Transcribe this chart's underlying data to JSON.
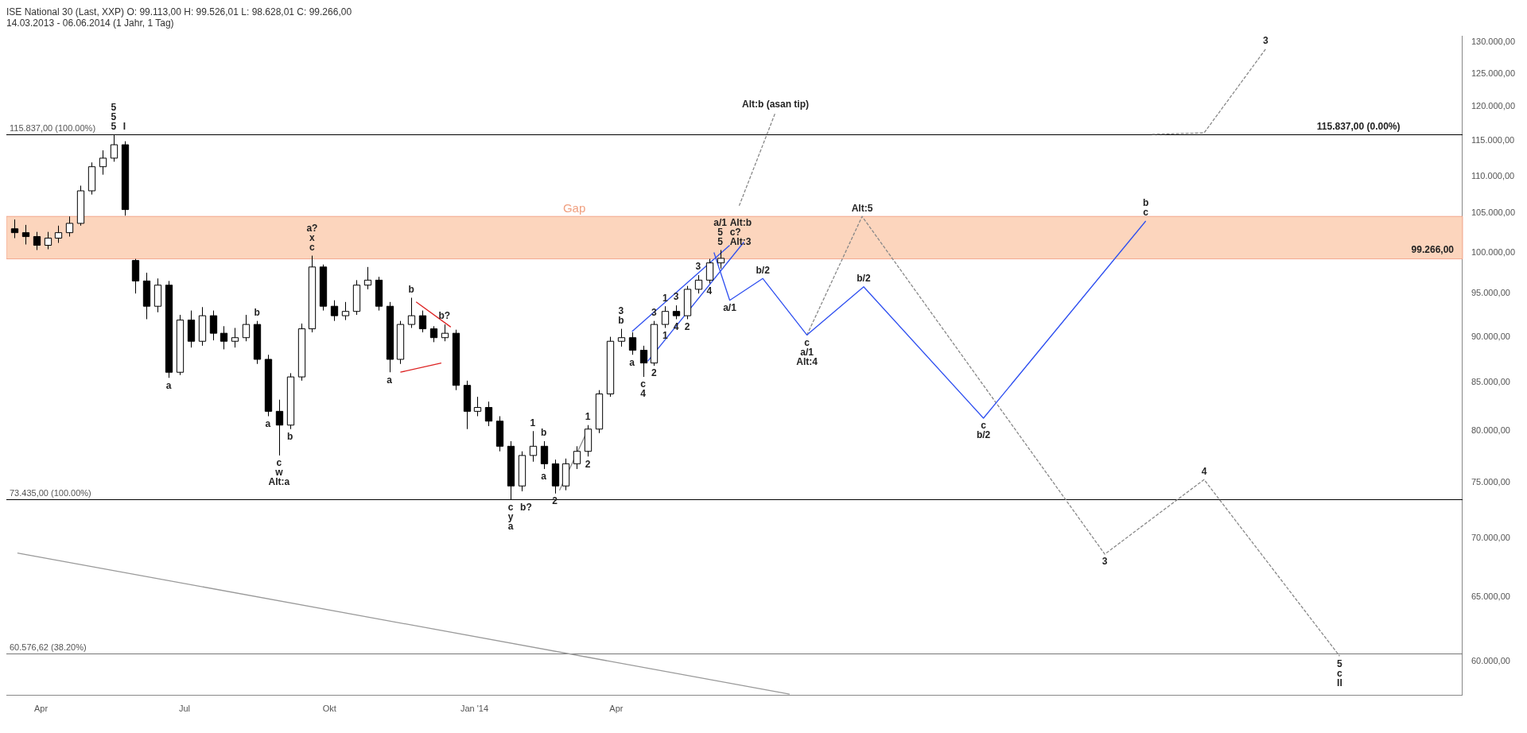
{
  "chart_data": {
    "type": "candlestick",
    "title": "ISE National 30 (Last, XXP)   O: 99.113,00   H: 99.526,01   L: 98.628,01   C: 99.266,00",
    "subtitle": "14.03.2013 - 06.06.2014 (1 Jahr, 1 Tag)",
    "colors": [
      "#000000",
      "#000000",
      "#000000",
      "#ffffff",
      "#ffffff",
      "#ffffff",
      "#ffffff",
      "#ffffff",
      "#ffffff",
      "#ffffff",
      "#000000",
      "#000000",
      "#000000",
      "#ffffff",
      "#000000",
      "#ffffff",
      "#000000",
      "#ffffff",
      "#000000",
      "#000000",
      "#ffffff",
      "#ffffff",
      "#000000",
      "#000000",
      "#000000",
      "#ffffff",
      "#ffffff",
      "#ffffff",
      "#000000",
      "#000000",
      "#ffffff",
      "#ffffff",
      "#ffffff",
      "#000000",
      "#000000",
      "#ffffff",
      "#ffffff",
      "#000000",
      "#000000",
      "#ffffff",
      "#000000",
      "#000000",
      "#ffffff",
      "#000000",
      "#000000",
      "#000000",
      "#ffffff",
      "#ffffff",
      "#000000",
      "#000000",
      "#ffffff",
      "#ffffff",
      "#ffffff",
      "#ffffff",
      "#ffffff",
      "#ffffff",
      "#000000",
      "#000000",
      "#ffffff",
      "#ffffff",
      "#000000",
      "#ffffff",
      "#ffffff",
      "#ffffff",
      "#ffffff"
    ],
    "marker": "none",
    "log": true,
    "x": [
      "2013-03-15",
      "2013-03-22",
      "2013-03-29",
      "2013-04-05",
      "2013-04-12",
      "2013-04-19",
      "2013-04-26",
      "2013-05-03",
      "2013-05-10",
      "2013-05-17",
      "2013-05-24",
      "2013-05-31",
      "2013-06-07",
      "2013-06-14",
      "2013-06-21",
      "2013-06-28",
      "2013-07-05",
      "2013-07-12",
      "2013-07-19",
      "2013-07-26",
      "2013-08-02",
      "2013-08-09",
      "2013-08-16",
      "2013-08-23",
      "2013-08-30",
      "2013-09-06",
      "2013-09-13",
      "2013-09-20",
      "2013-09-27",
      "2013-10-04",
      "2013-10-11",
      "2013-10-18",
      "2013-10-25",
      "2013-11-01",
      "2013-11-08",
      "2013-11-15",
      "2013-11-22",
      "2013-11-29",
      "2013-12-06",
      "2013-12-13",
      "2013-12-20",
      "2013-12-27",
      "2014-01-03",
      "2014-01-10",
      "2014-01-17",
      "2014-01-24",
      "2014-01-31",
      "2014-02-07",
      "2014-02-14",
      "2014-02-21",
      "2014-02-28",
      "2014-03-07",
      "2014-03-14",
      "2014-03-21",
      "2014-03-28",
      "2014-04-04",
      "2014-04-11",
      "2014-04-18",
      "2014-04-25",
      "2014-05-02",
      "2014-05-09",
      "2014-05-16",
      "2014-05-23",
      "2014-05-30",
      "2014-06-06"
    ],
    "ohlc": [
      [
        103000,
        104200,
        101800,
        102500
      ],
      [
        102500,
        103500,
        101000,
        102000
      ],
      [
        102000,
        102600,
        100300,
        100900
      ],
      [
        100900,
        102600,
        100400,
        101800
      ],
      [
        101800,
        103400,
        101200,
        102500
      ],
      [
        102500,
        104600,
        102000,
        103700
      ],
      [
        103700,
        108700,
        103400,
        108000
      ],
      [
        108000,
        111900,
        107500,
        111300
      ],
      [
        111300,
        113600,
        110200,
        112500
      ],
      [
        112500,
        115837,
        112000,
        114400
      ],
      [
        114400,
        114900,
        104700,
        105500
      ],
      [
        99000,
        99200,
        95000,
        96500
      ],
      [
        96500,
        97500,
        92000,
        93500
      ],
      [
        93500,
        96800,
        92800,
        96000
      ],
      [
        96000,
        96500,
        85500,
        86100
      ],
      [
        86100,
        92500,
        85800,
        91900
      ],
      [
        91900,
        93000,
        88800,
        89500
      ],
      [
        89500,
        93400,
        89000,
        92400
      ],
      [
        92400,
        93000,
        89600,
        90400
      ],
      [
        90400,
        91200,
        88600,
        89500
      ],
      [
        89500,
        91000,
        88800,
        89900
      ],
      [
        89900,
        92500,
        89500,
        91400
      ],
      [
        91400,
        91800,
        87000,
        87500
      ],
      [
        87500,
        88000,
        81500,
        82000
      ],
      [
        82000,
        83200,
        77600,
        80600
      ],
      [
        80600,
        86000,
        80200,
        85600
      ],
      [
        85600,
        91500,
        85200,
        90900
      ],
      [
        90900,
        99600,
        90500,
        98200
      ],
      [
        98200,
        98500,
        93000,
        93500
      ],
      [
        93500,
        94200,
        91800,
        92400
      ],
      [
        92400,
        94000,
        91900,
        92900
      ],
      [
        92900,
        96600,
        92500,
        96000
      ],
      [
        96000,
        98200,
        95500,
        96600
      ],
      [
        96600,
        97000,
        93000,
        93500
      ],
      [
        93500,
        94000,
        86100,
        87500
      ],
      [
        87500,
        91800,
        87000,
        91400
      ],
      [
        91400,
        94500,
        91000,
        92400
      ],
      [
        92400,
        93000,
        90500,
        90900
      ],
      [
        90900,
        91200,
        89400,
        89900
      ],
      [
        89900,
        91400,
        89500,
        90400
      ],
      [
        90400,
        90800,
        84200,
        84700
      ],
      [
        84700,
        85200,
        80200,
        82000
      ],
      [
        82000,
        83500,
        81500,
        82400
      ],
      [
        82400,
        83000,
        80500,
        81000
      ],
      [
        81000,
        81500,
        78000,
        78500
      ],
      [
        78500,
        79000,
        73435,
        74700
      ],
      [
        74700,
        78000,
        74200,
        77600
      ],
      [
        77600,
        80000,
        77000,
        78500
      ],
      [
        78500,
        79000,
        76300,
        76800
      ],
      [
        76800,
        77200,
        74000,
        74700
      ],
      [
        74700,
        77300,
        74300,
        76800
      ],
      [
        76800,
        78500,
        76300,
        78000
      ],
      [
        78000,
        80600,
        77500,
        80200
      ],
      [
        80200,
        84200,
        79800,
        83800
      ],
      [
        83800,
        90000,
        83500,
        89500
      ],
      [
        89500,
        90900,
        88900,
        89900
      ],
      [
        89900,
        90500,
        88000,
        88500
      ],
      [
        88500,
        89000,
        85600,
        87100
      ],
      [
        87100,
        91800,
        86800,
        91400
      ],
      [
        91400,
        93500,
        91000,
        92900
      ],
      [
        92900,
        93600,
        92000,
        92400
      ],
      [
        92400,
        95900,
        92000,
        95500
      ],
      [
        95500,
        97200,
        95000,
        96600
      ],
      [
        96600,
        99200,
        96200,
        98700
      ],
      [
        98700,
        100300,
        98000,
        99266
      ]
    ],
    "xlim": [
      "2013-03-10",
      "2015-09-20"
    ],
    "xticks": [
      {
        "value": "2013-04-01",
        "label": "Apr"
      },
      {
        "value": "2013-07-01",
        "label": "Jul"
      },
      {
        "value": "2013-10-01",
        "label": "Okt"
      },
      {
        "value": "2014-01-01",
        "label": "Jan '14"
      },
      {
        "value": "2014-04-01",
        "label": "Apr"
      }
    ],
    "ylim": [
      57500,
      131000
    ],
    "yticks": [
      {
        "value": 60000,
        "label": "60.000,00"
      },
      {
        "value": 65000,
        "label": "65.000,00"
      },
      {
        "value": 70000,
        "label": "70.000,00"
      },
      {
        "value": 75000,
        "label": "75.000,00"
      },
      {
        "value": 80000,
        "label": "80.000,00"
      },
      {
        "value": 85000,
        "label": "85.000,00"
      },
      {
        "value": 90000,
        "label": "90.000,00"
      },
      {
        "value": 95000,
        "label": "95.000,00"
      },
      {
        "value": 100000,
        "label": "100.000,00"
      },
      {
        "value": 105000,
        "label": "105.000,00"
      },
      {
        "value": 110000,
        "label": "110.000,00"
      },
      {
        "value": 115000,
        "label": "115.000,00"
      },
      {
        "value": 120000,
        "label": "120.000,00"
      },
      {
        "value": 125000,
        "label": "125.000,00"
      },
      {
        "value": 130000,
        "label": "130.000,00"
      }
    ],
    "ref_lines": [
      {
        "axis": "y",
        "value": 115837,
        "label": "115.837,00 (100.00%)",
        "color": "#000000"
      },
      {
        "axis": "y",
        "value": 73435,
        "label": "73.435,00 (100.00%)",
        "color": "#000000"
      },
      {
        "axis": "y",
        "value": 60576.62,
        "label": "60.576,62 (38.20%)",
        "color": "#777777"
      }
    ],
    "bands": [
      {
        "axis": "y",
        "from": 99200,
        "to": 104600,
        "label": "Gap",
        "color": "#fcd5bd"
      }
    ],
    "series": [
      {
        "type": "line",
        "color": "#2e4ff0",
        "line_style": "solid",
        "x": [
          "2014-06-02",
          "2014-06-12",
          "2014-07-03",
          "2014-07-31",
          "2014-09-05",
          "2014-11-20",
          "2015-03-03"
        ],
        "values": [
          100000,
          94200,
          96800,
          90200,
          95800,
          81300,
          104000
        ]
      },
      {
        "type": "line",
        "color": "#2e4ff0",
        "line_style": "solid",
        "x": [
          "2014-04-11",
          "2014-06-12"
        ],
        "values": [
          90600,
          100900
        ]
      },
      {
        "type": "line",
        "color": "#2e4ff0",
        "line_style": "solid",
        "x": [
          "2014-04-21",
          "2014-06-21"
        ],
        "values": [
          87300,
          101300
        ]
      },
      {
        "type": "line",
        "color": "#888888",
        "line_style": "dashed",
        "x": [
          "2014-06-18",
          "2014-07-11"
        ],
        "values": [
          106000,
          119100
        ]
      },
      {
        "type": "line",
        "color": "#888888",
        "line_style": "dashed",
        "x": [
          "2014-07-31",
          "2014-09-04",
          "2015-02-05",
          "2015-04-09",
          "2015-07-04"
        ],
        "values": [
          90200,
          104600,
          68600,
          75300,
          60400
        ]
      },
      {
        "type": "line",
        "color": "#888888",
        "line_style": "dashed",
        "x": [
          "2015-03-07",
          "2015-04-09",
          "2015-05-18"
        ],
        "values": [
          115900,
          116100,
          128900
        ]
      },
      {
        "type": "line",
        "color": "#999999",
        "line_style": "solid",
        "x": [
          "2013-03-17",
          "2014-07-20"
        ],
        "values": [
          68700,
          57600
        ]
      },
      {
        "type": "line",
        "color": "#dd2222",
        "line_style": "solid",
        "x": [
          "2013-11-25",
          "2013-12-17"
        ],
        "values": [
          94000,
          91100
        ]
      },
      {
        "type": "line",
        "color": "#dd2222",
        "line_style": "solid",
        "x": [
          "2013-11-15",
          "2013-12-11"
        ],
        "values": [
          86100,
          87100
        ]
      },
      {
        "type": "line",
        "color": "#888888",
        "line_style": "solid",
        "x": [
          "2014-02-24",
          "2014-03-13"
        ],
        "values": [
          74300,
          79800
        ]
      }
    ],
    "annotations": [
      {
        "text": "5",
        "x": "2013-05-17",
        "y": 115837
      },
      {
        "text": "5",
        "x": "2013-05-17",
        "y": 115837
      },
      {
        "text": "5",
        "x": "2013-05-17",
        "y": 115837
      },
      {
        "text": "I",
        "x": "2013-05-17",
        "y": 115837
      },
      {
        "text": "c",
        "x": "2013-09-20",
        "y": 99600
      },
      {
        "text": "x",
        "x": "2013-09-20",
        "y": 99600
      },
      {
        "text": "a?",
        "x": "2013-09-20",
        "y": 99600
      },
      {
        "text": "b",
        "x": "2013-08-16",
        "y": 91800
      },
      {
        "text": "a",
        "x": "2013-06-21",
        "y": 85500
      },
      {
        "text": "a",
        "x": "2013-08-23",
        "y": 81500
      },
      {
        "text": "b",
        "x": "2013-09-06",
        "y": 80200
      },
      {
        "text": "c",
        "x": "2013-08-30",
        "y": 77600
      },
      {
        "text": "w",
        "x": "2013-08-30",
        "y": 77600
      },
      {
        "text": "Alt:a",
        "x": "2013-08-30",
        "y": 77600
      },
      {
        "text": "b",
        "x": "2013-11-22",
        "y": 94500
      },
      {
        "text": "b?",
        "x": "2013-12-13",
        "y": 91400
      },
      {
        "text": "a",
        "x": "2013-11-08",
        "y": 86100
      },
      {
        "text": "c",
        "x": "2014-01-24",
        "y": 73435
      },
      {
        "text": "y",
        "x": "2014-01-24",
        "y": 73435
      },
      {
        "text": "a",
        "x": "2014-01-24",
        "y": 73435
      },
      {
        "text": "b?",
        "x": "2014-01-24",
        "y": 73435
      },
      {
        "text": "1",
        "x": "2014-02-07",
        "y": 80000
      },
      {
        "text": "b",
        "x": "2014-02-14",
        "y": 79000
      },
      {
        "text": "a",
        "x": "2014-02-14",
        "y": 76300
      },
      {
        "text": "2",
        "x": "2014-02-21",
        "y": 74000
      },
      {
        "text": "1",
        "x": "2014-03-14",
        "y": 80600
      },
      {
        "text": "2",
        "x": "2014-03-14",
        "y": 77500
      },
      {
        "text": "b",
        "x": "2014-04-04",
        "y": 90900
      },
      {
        "text": "3",
        "x": "2014-04-04",
        "y": 90900
      },
      {
        "text": "a",
        "x": "2014-04-11",
        "y": 88000
      },
      {
        "text": "c",
        "x": "2014-04-18",
        "y": 85600
      },
      {
        "text": "4",
        "x": "2014-04-18",
        "y": 85600
      },
      {
        "text": "3",
        "x": "2014-04-25",
        "y": 91800
      },
      {
        "text": "2",
        "x": "2014-04-25",
        "y": 86800
      },
      {
        "text": "1",
        "x": "2014-05-02",
        "y": 93500
      },
      {
        "text": "3",
        "x": "2014-05-09",
        "y": 93600
      },
      {
        "text": "4",
        "x": "2014-05-09",
        "y": 92000
      },
      {
        "text": "1",
        "x": "2014-05-02",
        "y": 91000
      },
      {
        "text": "2",
        "x": "2014-05-16",
        "y": 92000
      },
      {
        "text": "3",
        "x": "2014-05-23",
        "y": 97200
      },
      {
        "text": "4",
        "x": "2014-05-30",
        "y": 96200
      },
      {
        "text": "5",
        "x": "2014-06-06",
        "y": 100300
      },
      {
        "text": "5",
        "x": "2014-06-06",
        "y": 100300
      },
      {
        "text": "a/1",
        "x": "2014-06-06",
        "y": 100300
      },
      {
        "text": "Alt:3",
        "x": "2014-06-06",
        "y": 100300
      },
      {
        "text": "c?",
        "x": "2014-06-06",
        "y": 100300
      },
      {
        "text": "Alt:b",
        "x": "2014-06-06",
        "y": 100300
      },
      {
        "text": "Alt:b (asan tip)",
        "x": "2014-07-11",
        "y": 119100
      },
      {
        "text": "a/1",
        "x": "2014-06-12",
        "y": 94200
      },
      {
        "text": "b/2",
        "x": "2014-07-03",
        "y": 96800
      },
      {
        "text": "c",
        "x": "2014-07-31",
        "y": 90200
      },
      {
        "text": "a/1",
        "x": "2014-07-31",
        "y": 90200
      },
      {
        "text": "Alt:4",
        "x": "2014-07-31",
        "y": 90200
      },
      {
        "text": "b/2",
        "x": "2014-09-05",
        "y": 95800
      },
      {
        "text": "Alt:5",
        "x": "2014-09-04",
        "y": 104600
      },
      {
        "text": "c",
        "x": "2014-11-20",
        "y": 81300
      },
      {
        "text": "b/2",
        "x": "2014-11-20",
        "y": 81300
      },
      {
        "text": "c",
        "x": "2015-03-03",
        "y": 104000
      },
      {
        "text": "b",
        "x": "2015-03-03",
        "y": 104000
      },
      {
        "text": "3",
        "x": "2015-05-18",
        "y": 128900
      },
      {
        "text": "4",
        "x": "2015-04-09",
        "y": 75300
      },
      {
        "text": "3",
        "x": "2015-02-05",
        "y": 68600
      },
      {
        "text": "5",
        "x": "2015-07-04",
        "y": 60400
      },
      {
        "text": "c",
        "x": "2015-07-04",
        "y": 60400
      },
      {
        "text": "II",
        "x": "2015-07-04",
        "y": 60400
      },
      {
        "text": "115.837,00 (0.00%)",
        "x": "2015-07-16",
        "y": 115837
      },
      {
        "text": "99.266,00",
        "x": "2015-09-01",
        "y": 99266
      }
    ]
  }
}
